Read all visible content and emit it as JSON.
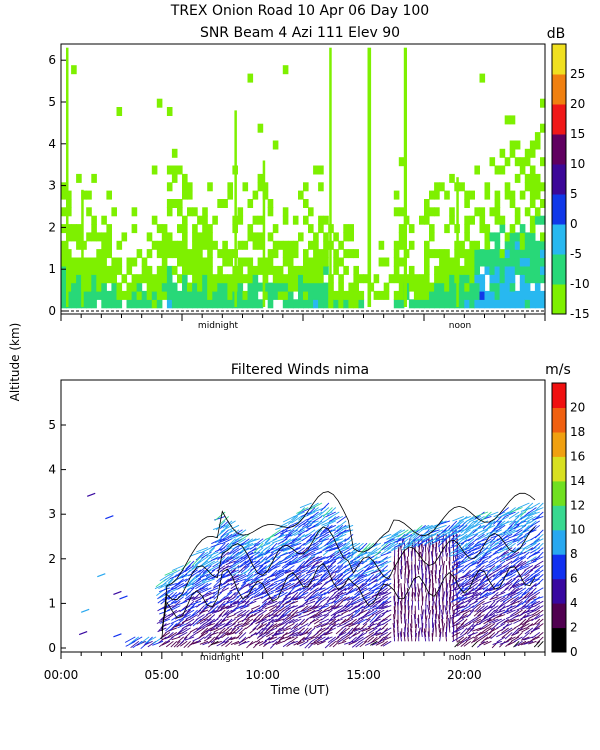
{
  "figure": {
    "title_line1": "TREX Onion Road  10 Apr 06 Day 100",
    "title_line2": "SNR Beam 4 Azi 111 Elev 90",
    "shared_ylabel": "Altitude (km)",
    "xlabel": "Time (UT)"
  },
  "chart_data": [
    {
      "type": "heatmap",
      "title": "SNR Beam 4 Azi 111 Elev 90",
      "ylabel": "Altitude (km)",
      "xlim": [
        0,
        24
      ],
      "ylim": [
        0,
        6.4
      ],
      "ytick_labels": [
        "0",
        "1",
        "2",
        "3",
        "4",
        "5",
        "6"
      ],
      "markers": [
        "midnight",
        "noon"
      ],
      "colorbar": {
        "unit": "dB",
        "tick_labels": [
          "25",
          "20",
          "15",
          "10",
          "5",
          "0",
          "-5",
          "-10",
          "-15"
        ],
        "range": [
          -15,
          30
        ],
        "colors": [
          "#7ef000",
          "#28d878",
          "#28b8f0",
          "#1038e8",
          "#3c0898",
          "#600060",
          "#f01818",
          "#f08010",
          "#f0e020"
        ]
      }
    },
    {
      "type": "scatter",
      "title": "Filtered Winds nima",
      "xlabel": "Time (UT)",
      "xlim": [
        0,
        24
      ],
      "ylim": [
        0,
        6
      ],
      "xtick_labels": [
        "00:00",
        "05:00",
        "10:00",
        "15:00",
        "20:00"
      ],
      "ytick_labels": [
        "0",
        "1",
        "2",
        "3",
        "4",
        "5"
      ],
      "markers": [
        "midnight",
        "noon"
      ],
      "colorbar": {
        "unit": "m/s",
        "tick_labels": [
          "20",
          "18",
          "16",
          "14",
          "12",
          "10",
          "8",
          "6",
          "4",
          "2",
          "0"
        ],
        "range": [
          0,
          22
        ],
        "colors": [
          "#000000",
          "#500050",
          "#3808a0",
          "#1030f0",
          "#28a8f0",
          "#38d890",
          "#70e020",
          "#d8e020",
          "#f0a010",
          "#f06010",
          "#f01010"
        ]
      }
    }
  ]
}
